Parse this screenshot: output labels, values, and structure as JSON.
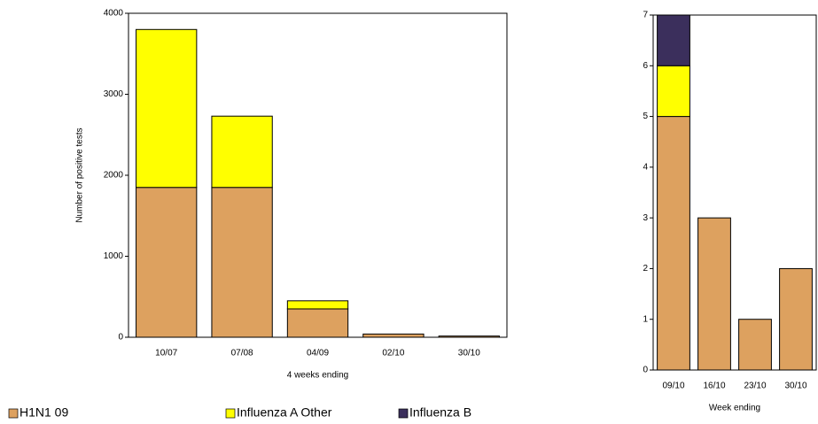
{
  "chart_data": [
    {
      "type": "stacked_bar",
      "x_label": "4 weeks ending",
      "y_label": "Number of positive tests",
      "categories": [
        "10/07",
        "07/08",
        "04/09",
        "02/10",
        "30/10"
      ],
      "series": [
        {
          "name": "H1N1 09",
          "color": "#dda15f",
          "values": [
            1850,
            1850,
            350,
            40,
            15
          ]
        },
        {
          "name": "Influenza A Other",
          "color": "#ffff00",
          "values": [
            1950,
            880,
            100,
            0,
            0
          ]
        },
        {
          "name": "Influenza B",
          "color": "#3b2f5c",
          "values": [
            0,
            0,
            0,
            0,
            0
          ]
        }
      ],
      "ylim": [
        0,
        4000
      ],
      "yticks": [
        0,
        1000,
        2000,
        3000,
        4000
      ],
      "legend": "bottom"
    },
    {
      "type": "stacked_bar",
      "x_label": "Week ending",
      "categories": [
        "09/10",
        "16/10",
        "23/10",
        "30/10"
      ],
      "series": [
        {
          "color": "#dda15f",
          "values": [
            5,
            3,
            1,
            2
          ]
        },
        {
          "color": "#ffff00",
          "values": [
            1,
            0,
            0,
            0
          ]
        },
        {
          "color": "#3b2f5c",
          "values": [
            1,
            0,
            0,
            0
          ]
        }
      ],
      "ylim": [
        0,
        7
      ],
      "yticks": [
        0,
        1,
        2,
        3,
        4,
        5,
        6,
        7
      ]
    }
  ]
}
